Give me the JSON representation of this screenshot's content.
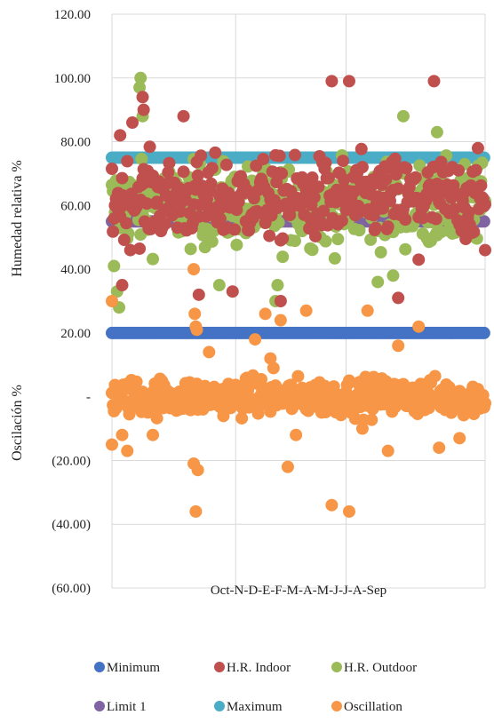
{
  "chart_data": {
    "type": "scatter",
    "title": "",
    "x_category_label": "Oct-N-D-E-F-M-A-M-J-J-A-Sep",
    "y_axis_labels": [
      "Humedad relativa %",
      "Oscilación %"
    ],
    "ylim": [
      -60,
      120
    ],
    "y_ticks": [
      {
        "value": 120,
        "label": "120.00"
      },
      {
        "value": 100,
        "label": "100.00"
      },
      {
        "value": 80,
        "label": "80.00"
      },
      {
        "value": 60,
        "label": "60.00"
      },
      {
        "value": 40,
        "label": "40.00"
      },
      {
        "value": 20,
        "label": "20.00"
      },
      {
        "value": 0,
        "label": "-"
      },
      {
        "value": -20,
        "label": "(20.00)"
      },
      {
        "value": -40,
        "label": "(40.00)"
      },
      {
        "value": -60,
        "label": "(60.00)"
      }
    ],
    "x_range": [
      0,
      365
    ],
    "vertical_gridlines_x": [
      0,
      121,
      229,
      365
    ],
    "grid": true,
    "legend_position": "bottom",
    "series": [
      {
        "name": "Minimum",
        "color": "#4472C4",
        "constant": 20
      },
      {
        "name": "H.R. Indoor",
        "color": "#C0504D",
        "range": [
          30,
          100
        ],
        "center": 62,
        "spread": 11,
        "highlights": [
          [
            30,
            94
          ],
          [
            31,
            90
          ],
          [
            215,
            99
          ],
          [
            232,
            99
          ],
          [
            315,
            99
          ],
          [
            20,
            86
          ],
          [
            70,
            88
          ],
          [
            8,
            82
          ],
          [
            85,
            32
          ],
          [
            118,
            33
          ],
          [
            165,
            30
          ],
          [
            280,
            31
          ],
          [
            300,
            43
          ],
          [
            10,
            35
          ],
          [
            380,
            46
          ]
        ]
      },
      {
        "name": "H.R. Outdoor",
        "color": "#9BBB59",
        "range": [
          27,
          100
        ],
        "center": 60,
        "spread": 11,
        "highlights": [
          [
            28,
            100
          ],
          [
            27,
            97
          ],
          [
            30,
            88
          ],
          [
            285,
            88
          ],
          [
            318,
            83
          ],
          [
            2,
            41
          ],
          [
            5,
            33
          ],
          [
            7,
            28
          ],
          [
            160,
            30
          ],
          [
            162,
            35
          ],
          [
            260,
            36
          ],
          [
            275,
            38
          ],
          [
            105,
            35
          ]
        ]
      },
      {
        "name": "Limit 1",
        "color": "#8064A2",
        "constant": 55
      },
      {
        "name": "Maximum",
        "color": "#4BACC6",
        "constant": 75
      },
      {
        "name": "Oscillation",
        "color": "#F79646",
        "range": [
          -36,
          40
        ],
        "center": 0,
        "spread": 5,
        "highlights": [
          [
            0,
            30
          ],
          [
            80,
            40
          ],
          [
            81,
            26
          ],
          [
            82,
            22
          ],
          [
            83,
            21
          ],
          [
            95,
            14
          ],
          [
            140,
            18
          ],
          [
            150,
            26
          ],
          [
            155,
            12
          ],
          [
            158,
            9
          ],
          [
            165,
            24
          ],
          [
            190,
            27
          ],
          [
            250,
            27
          ],
          [
            280,
            16
          ],
          [
            300,
            22
          ],
          [
            80,
            -21
          ],
          [
            82,
            -36
          ],
          [
            84,
            -23
          ],
          [
            172,
            -22
          ],
          [
            215,
            -34
          ],
          [
            232,
            -36
          ],
          [
            270,
            -17
          ],
          [
            320,
            -16
          ],
          [
            0,
            -15
          ],
          [
            10,
            -12
          ],
          [
            15,
            -17
          ],
          [
            40,
            -12
          ],
          [
            180,
            -12
          ],
          [
            245,
            -10
          ],
          [
            340,
            -13
          ]
        ]
      }
    ]
  },
  "legend": {
    "items": [
      {
        "label": "Minimum",
        "color": "#4472C4"
      },
      {
        "label": "H.R. Indoor",
        "color": "#C0504D"
      },
      {
        "label": "H.R. Outdoor",
        "color": "#9BBB59"
      },
      {
        "label": "Limit 1",
        "color": "#8064A2"
      },
      {
        "label": "Maximum",
        "color": "#4BACC6"
      },
      {
        "label": "Oscillation",
        "color": "#F79646"
      }
    ]
  }
}
